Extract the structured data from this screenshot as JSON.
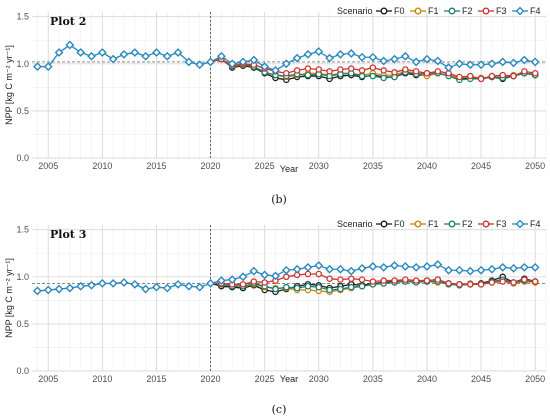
{
  "chart_data": [
    {
      "type": "line",
      "title": "Plot 2",
      "caption": "(b)",
      "xlabel": "Year",
      "ylabel": "NPP [kg C m⁻² yr⁻¹]",
      "xlim": [
        2003.5,
        2051
      ],
      "ylim": [
        0,
        1.55
      ],
      "xticks": [
        "2005",
        "2010",
        "2015",
        "2020",
        "2025",
        "2030",
        "2035",
        "2040",
        "2045",
        "2050"
      ],
      "yticks": [
        "0.0",
        "0.5",
        "1.0",
        "1.5"
      ],
      "reference_line_y": 1.02,
      "vertical_line_x": 2020,
      "legend_title": "Scenario",
      "legend_position": "top-right",
      "grid": true,
      "history": {
        "x": [
          2004,
          2005,
          2006,
          2007,
          2008,
          2009,
          2010,
          2011,
          2012,
          2013,
          2014,
          2015,
          2016,
          2017,
          2018,
          2019,
          2020
        ],
        "y": [
          0.97,
          0.97,
          1.12,
          1.2,
          1.12,
          1.08,
          1.12,
          1.05,
          1.1,
          1.12,
          1.08,
          1.12,
          1.08,
          1.12,
          1.02,
          0.99,
          1.02
        ]
      },
      "scenario_x": [
        2021,
        2022,
        2023,
        2024,
        2025,
        2026,
        2027,
        2028,
        2029,
        2030,
        2031,
        2032,
        2033,
        2034,
        2035,
        2036,
        2037,
        2038,
        2039,
        2040,
        2041,
        2042,
        2043,
        2044,
        2045,
        2046,
        2047,
        2048,
        2049,
        2050
      ],
      "series": [
        {
          "name": "F0",
          "color": "#1a1a1a",
          "values": [
            1.05,
            0.96,
            0.98,
            0.96,
            0.9,
            0.85,
            0.83,
            0.86,
            0.87,
            0.87,
            0.84,
            0.87,
            0.88,
            0.86,
            0.88,
            0.86,
            0.86,
            0.9,
            0.88,
            0.88,
            0.9,
            0.88,
            0.84,
            0.85,
            0.84,
            0.86,
            0.84,
            0.87,
            0.9,
            0.88
          ]
        },
        {
          "name": "F1",
          "color": "#c8860a",
          "values": [
            1.05,
            0.97,
            0.99,
            0.97,
            0.91,
            0.88,
            0.86,
            0.88,
            0.9,
            0.9,
            0.88,
            0.9,
            0.9,
            0.88,
            0.9,
            0.88,
            0.88,
            0.92,
            0.9,
            0.87,
            0.9,
            0.88,
            0.85,
            0.86,
            0.85,
            0.86,
            0.86,
            0.88,
            0.9,
            0.89
          ]
        },
        {
          "name": "F2",
          "color": "#1a7f6e",
          "values": [
            1.05,
            0.97,
            1.0,
            0.97,
            0.91,
            0.88,
            0.87,
            0.89,
            0.88,
            0.89,
            0.87,
            0.89,
            0.9,
            0.87,
            0.87,
            0.85,
            0.86,
            0.91,
            0.89,
            0.9,
            0.9,
            0.87,
            0.83,
            0.84,
            0.84,
            0.86,
            0.85,
            0.87,
            0.9,
            0.88
          ]
        },
        {
          "name": "F3",
          "color": "#cc3333",
          "values": [
            1.05,
            0.98,
            1.0,
            0.99,
            0.95,
            0.92,
            0.9,
            0.93,
            0.95,
            0.94,
            0.92,
            0.94,
            0.95,
            0.93,
            0.96,
            0.93,
            0.91,
            0.94,
            0.92,
            0.9,
            0.92,
            0.9,
            0.86,
            0.87,
            0.84,
            0.87,
            0.88,
            0.87,
            0.92,
            0.9
          ]
        },
        {
          "name": "F4",
          "color": "#2a88bd",
          "values": [
            1.08,
            1.0,
            1.02,
            1.04,
            0.97,
            0.93,
            1.0,
            1.06,
            1.1,
            1.13,
            1.06,
            1.1,
            1.11,
            1.07,
            1.07,
            1.03,
            1.05,
            1.08,
            1.02,
            1.05,
            1.03,
            0.96,
            1.0,
            0.99,
            0.99,
            1.0,
            1.02,
            1.01,
            1.04,
            1.02
          ]
        }
      ]
    },
    {
      "type": "line",
      "title": "Plot 3",
      "caption": "(c)",
      "xlabel": "Year",
      "ylabel": "NPP [kg C m⁻² yr⁻¹]",
      "xlim": [
        2003.5,
        2051
      ],
      "ylim": [
        0,
        1.55
      ],
      "xticks": [
        "2005",
        "2010",
        "2015",
        "2020",
        "2025",
        "2030",
        "2035",
        "2040",
        "2045",
        "2050"
      ],
      "yticks": [
        "0.0",
        "0.5",
        "1.0",
        "1.5"
      ],
      "reference_line_y": 0.93,
      "vertical_line_x": 2020,
      "legend_title": "Scenario",
      "legend_position": "top-right",
      "grid": true,
      "history": {
        "x": [
          2004,
          2005,
          2006,
          2007,
          2008,
          2009,
          2010,
          2011,
          2012,
          2013,
          2014,
          2015,
          2016,
          2017,
          2018,
          2019,
          2020
        ],
        "y": [
          0.85,
          0.86,
          0.87,
          0.88,
          0.9,
          0.91,
          0.93,
          0.93,
          0.94,
          0.92,
          0.87,
          0.89,
          0.88,
          0.92,
          0.9,
          0.89,
          0.93
        ]
      },
      "scenario_x": [
        2021,
        2022,
        2023,
        2024,
        2025,
        2026,
        2027,
        2028,
        2029,
        2030,
        2031,
        2032,
        2033,
        2034,
        2035,
        2036,
        2037,
        2038,
        2039,
        2040,
        2041,
        2042,
        2043,
        2044,
        2045,
        2046,
        2047,
        2048,
        2049,
        2050
      ],
      "series": [
        {
          "name": "F0",
          "color": "#1a1a1a",
          "values": [
            0.9,
            0.89,
            0.88,
            0.91,
            0.86,
            0.84,
            0.87,
            0.9,
            0.92,
            0.91,
            0.88,
            0.9,
            0.92,
            0.91,
            0.93,
            0.94,
            0.95,
            0.96,
            0.95,
            0.96,
            0.97,
            0.93,
            0.92,
            0.92,
            0.93,
            0.96,
            1.0,
            0.94,
            0.98,
            0.95
          ]
        },
        {
          "name": "F1",
          "color": "#c8860a",
          "values": [
            0.92,
            0.91,
            0.9,
            0.92,
            0.89,
            0.88,
            0.88,
            0.86,
            0.86,
            0.85,
            0.84,
            0.86,
            0.88,
            0.9,
            0.92,
            0.93,
            0.94,
            0.96,
            0.95,
            0.95,
            0.94,
            0.93,
            0.92,
            0.93,
            0.92,
            0.94,
            0.96,
            0.93,
            0.95,
            0.94
          ]
        },
        {
          "name": "F2",
          "color": "#1a7f6e",
          "values": [
            0.92,
            0.9,
            0.9,
            0.93,
            0.9,
            0.87,
            0.89,
            0.88,
            0.9,
            0.89,
            0.86,
            0.87,
            0.89,
            0.9,
            0.92,
            0.93,
            0.94,
            0.95,
            0.94,
            0.95,
            0.95,
            0.92,
            0.91,
            0.92,
            0.92,
            0.95,
            0.97,
            0.94,
            0.96,
            0.95
          ]
        },
        {
          "name": "F3",
          "color": "#cc3333",
          "values": [
            0.93,
            0.92,
            0.92,
            0.95,
            0.94,
            0.96,
            1.0,
            1.02,
            1.03,
            1.03,
            0.98,
            0.97,
            0.98,
            0.97,
            0.95,
            0.96,
            0.96,
            0.97,
            0.96,
            0.96,
            0.97,
            0.93,
            0.92,
            0.92,
            0.92,
            0.94,
            0.95,
            0.94,
            0.97,
            0.95
          ]
        },
        {
          "name": "F4",
          "color": "#2a88bd",
          "values": [
            0.96,
            0.97,
            1.0,
            1.06,
            1.02,
            1.01,
            1.07,
            1.08,
            1.1,
            1.12,
            1.08,
            1.08,
            1.06,
            1.09,
            1.11,
            1.1,
            1.12,
            1.11,
            1.1,
            1.11,
            1.13,
            1.07,
            1.07,
            1.06,
            1.07,
            1.08,
            1.1,
            1.09,
            1.1,
            1.1
          ]
        }
      ]
    }
  ]
}
